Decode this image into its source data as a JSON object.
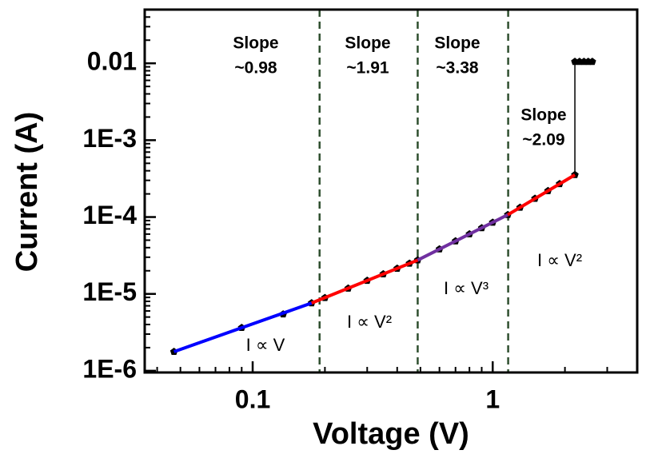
{
  "chart_data": {
    "type": "line",
    "xlabel": "Voltage (V)",
    "ylabel": "Current (A)",
    "xscale": "log",
    "yscale": "log",
    "xlim": [
      0.0355,
      4
    ],
    "ylim": [
      9.5e-07,
      0.05
    ],
    "xticks": [
      0.1,
      1
    ],
    "xminorticks": [
      0.04,
      0.05,
      0.06,
      0.07,
      0.08,
      0.09,
      0.2,
      0.3,
      0.4,
      0.5,
      0.6,
      0.7,
      0.8,
      0.9,
      2,
      3
    ],
    "yticks": [
      {
        "value": 1e-06,
        "label": "1E-6"
      },
      {
        "value": 1e-05,
        "label": "1E-5"
      },
      {
        "value": 0.0001,
        "label": "1E-4"
      },
      {
        "value": 0.001,
        "label": "1E-3"
      },
      0.01
    ],
    "yminorticks": [
      2e-06,
      3e-06,
      4e-06,
      5e-06,
      6e-06,
      7e-06,
      8e-06,
      9e-06,
      2e-05,
      3e-05,
      4e-05,
      5e-05,
      6e-05,
      7e-05,
      8e-05,
      9e-05,
      0.0002,
      0.0003,
      0.0004,
      0.0005,
      0.0006,
      0.0007,
      0.0008,
      0.0009,
      0.002,
      0.003,
      0.004,
      0.005,
      0.006,
      0.007,
      0.008,
      0.009,
      0.02,
      0.03,
      0.04
    ],
    "vlines": [
      0.19,
      0.487,
      1.16
    ],
    "vline_color": "#2f4f2f",
    "series": [
      {
        "color": "#000000",
        "markers": true,
        "x": [
          0.047,
          0.09,
          0.134,
          0.176,
          0.2,
          0.25,
          0.3,
          0.35,
          0.4,
          0.45,
          0.487,
          0.6,
          0.7,
          0.8,
          0.9,
          1.0,
          1.156,
          1.3,
          1.5,
          1.7,
          1.9,
          2.2,
          2.2,
          2.3,
          2.4,
          2.5,
          2.6
        ],
        "values": [
          1.77e-06,
          3.63e-06,
          5.44e-06,
          7.6e-06,
          8.9e-06,
          1.18e-05,
          1.49e-05,
          1.81e-05,
          2.14e-05,
          2.49e-05,
          2.75e-05,
          3.82e-05,
          4.86e-05,
          6e-05,
          7.2e-05,
          8.5e-05,
          0.000107,
          0.000133,
          0.000174,
          0.000219,
          0.00027,
          0.000354,
          0.0105,
          0.0105,
          0.0105,
          0.0105,
          0.0105
        ]
      },
      {
        "color": "#0000ff",
        "markers": false,
        "x": [
          0.047,
          0.176
        ],
        "values": [
          1.77e-06,
          7.6e-06
        ]
      },
      {
        "color": "#ff0000",
        "markers": false,
        "x": [
          0.176,
          0.487
        ],
        "values": [
          7.6e-06,
          2.75e-05
        ]
      },
      {
        "color": "#7030a0",
        "markers": false,
        "x": [
          0.487,
          1.156
        ],
        "values": [
          2.75e-05,
          0.000107
        ]
      },
      {
        "color": "#ff0000",
        "markers": false,
        "x": [
          1.156,
          2.2
        ],
        "values": [
          0.000107,
          0.000354
        ]
      }
    ],
    "slope_labels": [
      [
        "Slope",
        "~0.98"
      ],
      [
        "Slope",
        "~1.91"
      ],
      [
        "Slope",
        "~3.38"
      ],
      [
        "Slope",
        "~2.09"
      ]
    ],
    "region_labels": [
      "I ∝ V",
      "I ∝ V²",
      "I ∝ V³",
      "I ∝ V²"
    ]
  }
}
